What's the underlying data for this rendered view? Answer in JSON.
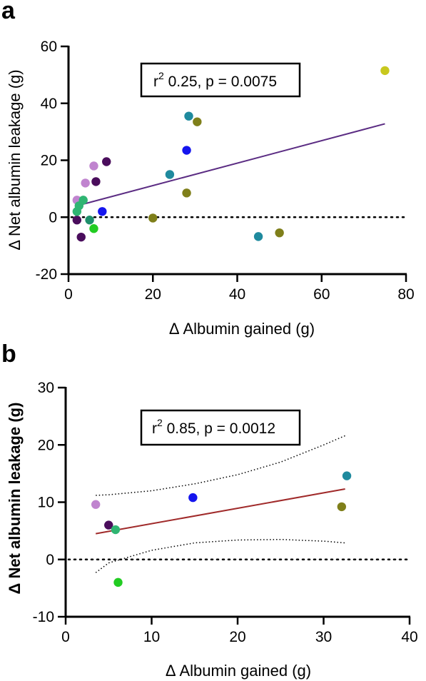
{
  "chart_data": [
    {
      "type": "scatter",
      "panel": "a",
      "xlabel": "Δ Albumin gained (g)",
      "ylabel": "Δ Net albumin leakage (g)",
      "xlim": [
        0,
        80
      ],
      "ylim": [
        -20,
        60
      ],
      "xticks": [
        "0",
        "20",
        "40",
        "60",
        "80"
      ],
      "yticks": [
        "-20",
        "0",
        "20",
        "40",
        "60"
      ],
      "annotation": {
        "r2_prefix": "r",
        "r2_sup": "2",
        "text": " 0.25, p = 0.0075"
      },
      "reference_line_y": 0,
      "regression": {
        "x": [
          2,
          75
        ],
        "y": [
          4.0,
          32.8
        ],
        "color": "#5b2c83"
      },
      "points": [
        {
          "x": 2,
          "y": 6,
          "color": "#c084cf"
        },
        {
          "x": 2,
          "y": -1,
          "color": "#4a0d5c"
        },
        {
          "x": 2,
          "y": 2,
          "color": "#2fb572"
        },
        {
          "x": 2.5,
          "y": 4,
          "color": "#2fb572"
        },
        {
          "x": 3,
          "y": -7,
          "color": "#4a0d5c"
        },
        {
          "x": 3.5,
          "y": 6,
          "color": "#2fb572"
        },
        {
          "x": 4,
          "y": 12,
          "color": "#c084cf"
        },
        {
          "x": 5,
          "y": -1,
          "color": "#1e8f6b"
        },
        {
          "x": 6,
          "y": 18,
          "color": "#c084cf"
        },
        {
          "x": 6.5,
          "y": 12.5,
          "color": "#4a0d5c"
        },
        {
          "x": 6,
          "y": -4,
          "color": "#22cc22"
        },
        {
          "x": 8,
          "y": 2,
          "color": "#1515ee"
        },
        {
          "x": 9,
          "y": 19.5,
          "color": "#4a0d5c"
        },
        {
          "x": 20,
          "y": -0.3,
          "color": "#7f7f1a"
        },
        {
          "x": 24,
          "y": 15,
          "color": "#1f8a9e"
        },
        {
          "x": 28,
          "y": 23.5,
          "color": "#1515ee"
        },
        {
          "x": 28,
          "y": 8.5,
          "color": "#7f7f1a"
        },
        {
          "x": 28.5,
          "y": 35.5,
          "color": "#1f8a9e"
        },
        {
          "x": 30.5,
          "y": 33.5,
          "color": "#7f7f1a"
        },
        {
          "x": 45,
          "y": -6.8,
          "color": "#1f8a9e"
        },
        {
          "x": 50,
          "y": -5.5,
          "color": "#7f7f1a"
        },
        {
          "x": 75,
          "y": 51.5,
          "color": "#c8c81e"
        }
      ]
    },
    {
      "type": "scatter",
      "panel": "b",
      "xlabel": "Δ Albumin gained (g)",
      "ylabel": "Δ Net albumin leakage (g)",
      "xlim": [
        0,
        40
      ],
      "ylim": [
        -10,
        30
      ],
      "xticks": [
        "0",
        "10",
        "20",
        "30",
        "40"
      ],
      "yticks": [
        "-10",
        "0",
        "10",
        "20",
        "30"
      ],
      "annotation": {
        "r2_prefix": "r",
        "r2_sup": "2",
        "text": " 0.85, p = 0.0012"
      },
      "reference_line_y": 0,
      "regression": {
        "x": [
          3.5,
          32.5
        ],
        "y": [
          4.5,
          12.3
        ],
        "color": "#a02a2a"
      },
      "ci_upper": {
        "x": [
          3.5,
          5,
          10,
          15,
          20,
          25,
          30,
          32.5
        ],
        "y": [
          11.2,
          11.3,
          12.0,
          13.2,
          14.8,
          17.0,
          20.0,
          21.6
        ]
      },
      "ci_lower": {
        "x": [
          3.5,
          5,
          10,
          15,
          20,
          25,
          30,
          32.5
        ],
        "y": [
          -2.3,
          -0.6,
          1.6,
          2.9,
          3.4,
          3.5,
          3.2,
          2.9
        ]
      },
      "points": [
        {
          "x": 3.5,
          "y": 9.6,
          "color": "#c084cf"
        },
        {
          "x": 5,
          "y": 6,
          "color": "#4a0d5c"
        },
        {
          "x": 5.8,
          "y": 5.2,
          "color": "#2fb572"
        },
        {
          "x": 6.1,
          "y": -4,
          "color": "#22cc22"
        },
        {
          "x": 14.8,
          "y": 10.8,
          "color": "#1515ee"
        },
        {
          "x": 32.1,
          "y": 9.2,
          "color": "#7f7f1a"
        },
        {
          "x": 32.7,
          "y": 14.6,
          "color": "#1f8a9e"
        }
      ]
    }
  ]
}
